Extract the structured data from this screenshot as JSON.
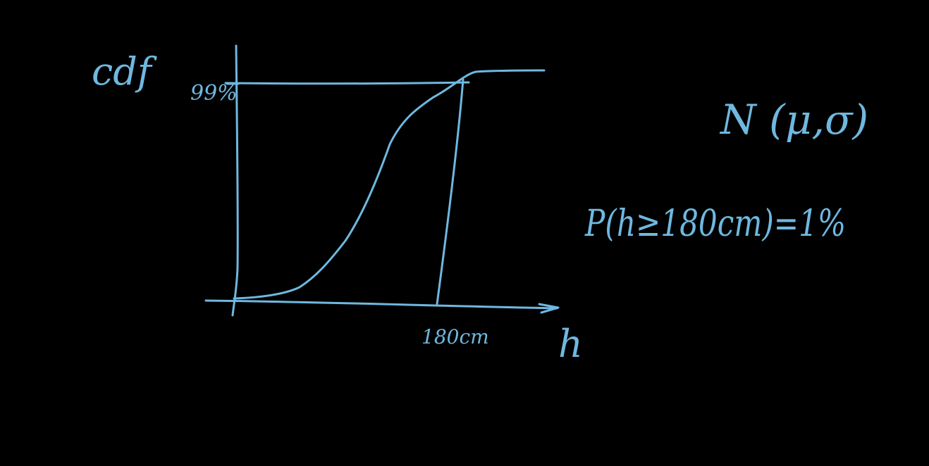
{
  "colors": {
    "background": "#000000",
    "ink": "#6fb8e0"
  },
  "labels": {
    "y_axis": "cdf",
    "x_axis": "h",
    "y_tick": "99%",
    "x_tick": "180cm"
  },
  "equations": {
    "distribution": "N (μ,σ)",
    "probability": "P(h≥180cm)=1%"
  }
}
